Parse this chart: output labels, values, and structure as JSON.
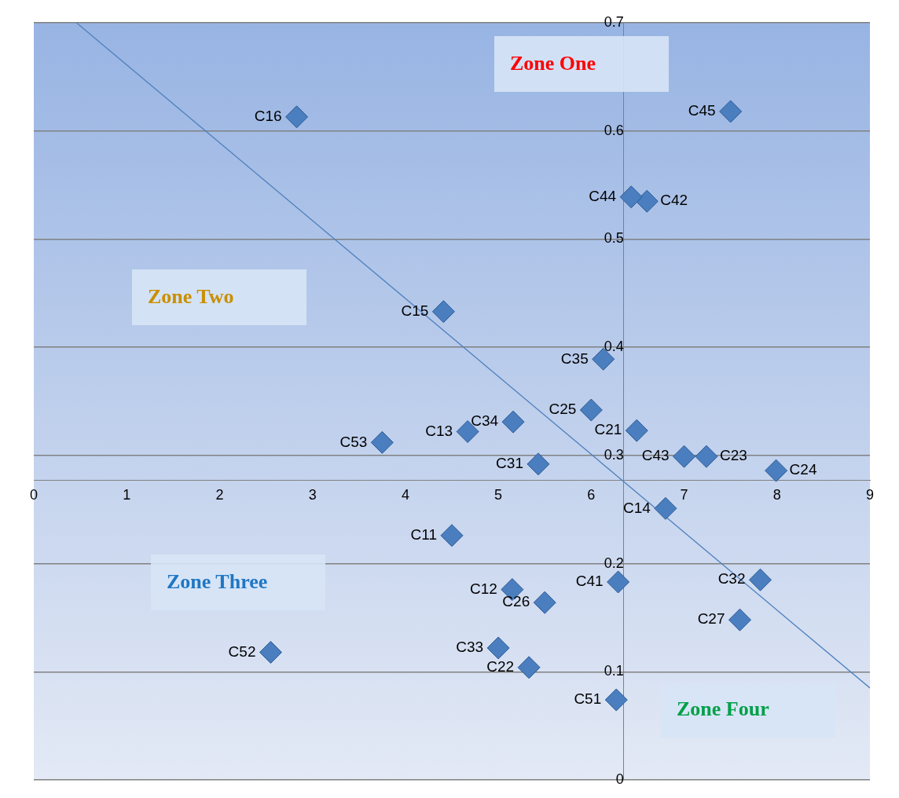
{
  "chart_data": {
    "type": "scatter",
    "xlim": [
      0,
      9
    ],
    "xticks": [
      0,
      1,
      2,
      3,
      4,
      5,
      6,
      7,
      8,
      9
    ],
    "ylim": [
      0,
      0.7
    ],
    "yticks": [
      0,
      0.1,
      0.2,
      0.3,
      0.4,
      0.5,
      0.6,
      0.7
    ],
    "grid": "y",
    "legend": false,
    "marker": "diamond",
    "annotations": [
      "Zone One",
      "Zone Two",
      "Zone Three",
      "Zone Four"
    ],
    "series": [
      {
        "name": "C16",
        "color": "#4a7ebf",
        "x": [
          2.83
        ],
        "values": [
          0.613
        ]
      },
      {
        "name": "C45",
        "color": "#4a7ebf",
        "x": [
          7.5
        ],
        "values": [
          0.618
        ]
      },
      {
        "name": "C44",
        "color": "#4a7ebf",
        "x": [
          6.43
        ],
        "values": [
          0.539
        ]
      },
      {
        "name": "C42",
        "color": "#4a7ebf",
        "x": [
          6.6
        ],
        "values": [
          0.535
        ]
      },
      {
        "name": "C15",
        "color": "#4a7ebf",
        "x": [
          4.41
        ],
        "values": [
          0.433
        ]
      },
      {
        "name": "C35",
        "color": "#4a7ebf",
        "x": [
          6.13
        ],
        "values": [
          0.389
        ]
      },
      {
        "name": "C25",
        "color": "#4a7ebf",
        "x": [
          6.0
        ],
        "values": [
          0.342
        ]
      },
      {
        "name": "C34",
        "color": "#4a7ebf",
        "x": [
          5.16
        ],
        "values": [
          0.331
        ]
      },
      {
        "name": "C13",
        "color": "#4a7ebf",
        "x": [
          4.67
        ],
        "values": [
          0.322
        ]
      },
      {
        "name": "C21",
        "color": "#4a7ebf",
        "x": [
          6.49
        ],
        "values": [
          0.323
        ]
      },
      {
        "name": "C53",
        "color": "#4a7ebf",
        "x": [
          3.75
        ],
        "values": [
          0.312
        ]
      },
      {
        "name": "C43",
        "color": "#4a7ebf",
        "x": [
          7.0
        ],
        "values": [
          0.299
        ]
      },
      {
        "name": "C23",
        "color": "#4a7ebf",
        "x": [
          7.24
        ],
        "values": [
          0.299
        ]
      },
      {
        "name": "C31",
        "color": "#4a7ebf",
        "x": [
          5.43
        ],
        "values": [
          0.292
        ]
      },
      {
        "name": "C24",
        "color": "#4a7ebf",
        "x": [
          7.99
        ],
        "values": [
          0.286
        ]
      },
      {
        "name": "C14",
        "color": "#4a7ebf",
        "x": [
          6.8
        ],
        "values": [
          0.251
        ]
      },
      {
        "name": "C11",
        "color": "#4a7ebf",
        "x": [
          4.5
        ],
        "values": [
          0.226
        ]
      },
      {
        "name": "C41",
        "color": "#4a7ebf",
        "x": [
          6.29
        ],
        "values": [
          0.183
        ]
      },
      {
        "name": "C32",
        "color": "#4a7ebf",
        "x": [
          7.82
        ],
        "values": [
          0.185
        ]
      },
      {
        "name": "C12",
        "color": "#4a7ebf",
        "x": [
          5.15
        ],
        "values": [
          0.176
        ]
      },
      {
        "name": "C26",
        "color": "#4a7ebf",
        "x": [
          5.5
        ],
        "values": [
          0.164
        ]
      },
      {
        "name": "C27",
        "color": "#4a7ebf",
        "x": [
          7.6
        ],
        "values": [
          0.148
        ]
      },
      {
        "name": "C52",
        "color": "#4a7ebf",
        "x": [
          2.55
        ],
        "values": [
          0.118
        ]
      },
      {
        "name": "C33",
        "color": "#4a7ebf",
        "x": [
          5.0
        ],
        "values": [
          0.122
        ]
      },
      {
        "name": "C22",
        "color": "#4a7ebf",
        "x": [
          5.33
        ],
        "values": [
          0.104
        ]
      },
      {
        "name": "C51",
        "color": "#4a7ebf",
        "x": [
          6.27
        ],
        "values": [
          0.074
        ]
      },
      {
        "type": "line",
        "color": "#4f81bd",
        "marker": "none",
        "x": [
          0.46,
          9
        ],
        "values": [
          0.7,
          0.085
        ]
      }
    ]
  }
}
